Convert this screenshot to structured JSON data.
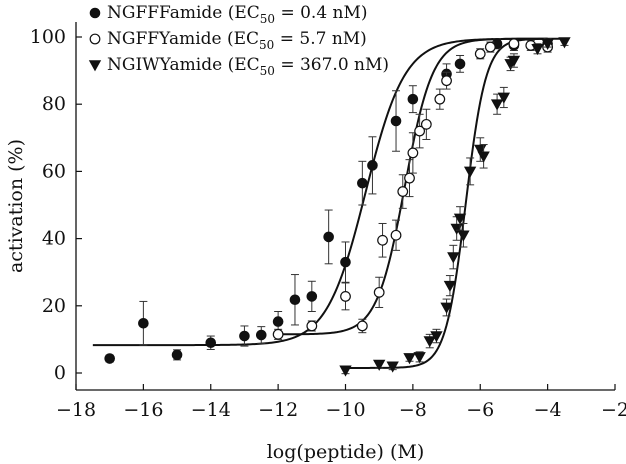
{
  "chart_data": {
    "type": "scatter",
    "title": "",
    "xlabel": "log(peptide) (M)",
    "ylabel": "activation (%)",
    "xlim": [
      -18,
      -2
    ],
    "ylim": [
      0,
      100
    ],
    "xticks": [
      -18,
      -16,
      -14,
      -12,
      -10,
      -8,
      -6,
      -4,
      -2
    ],
    "yticks": [
      0,
      20,
      40,
      60,
      80,
      100
    ],
    "xtick_labels": [
      "−18",
      "−16",
      "−14",
      "−12",
      "−10",
      "−8",
      "−6",
      "−4",
      "−2"
    ],
    "ytick_labels": [
      "0",
      "20",
      "40",
      "60",
      "80",
      "100"
    ],
    "legend_position": "top-left",
    "series": [
      {
        "name": "NGFFFamide",
        "legend": {
          "prefix": "NGFFFamide (EC",
          "sub": "50",
          "suffix": " = 0.4 nM)"
        },
        "marker": "filled-circle",
        "color": "#111111",
        "ec50_log": -9.4,
        "fit_curve": {
          "bottom": 8.3,
          "top": 99.5,
          "hill": 0.75,
          "x_range": [
            -17.5,
            -4
          ]
        },
        "points": [
          {
            "x": -17,
            "y": 4.3,
            "err": 1.0
          },
          {
            "x": -16,
            "y": 14.8,
            "err": 6.5
          },
          {
            "x": -15,
            "y": 5.4,
            "err": 1.5
          },
          {
            "x": -14,
            "y": 9.0,
            "err": 2.0
          },
          {
            "x": -13,
            "y": 11.0,
            "err": 3.0
          },
          {
            "x": -12.5,
            "y": 11.3,
            "err": 2.5
          },
          {
            "x": -12,
            "y": 15.3,
            "err": 3.0
          },
          {
            "x": -11.5,
            "y": 21.8,
            "err": 7.5
          },
          {
            "x": -11,
            "y": 22.8,
            "err": 4.5
          },
          {
            "x": -10.5,
            "y": 40.5,
            "err": 8.0
          },
          {
            "x": -10,
            "y": 33.0,
            "err": 6.0
          },
          {
            "x": -9.5,
            "y": 56.5,
            "err": 6.5
          },
          {
            "x": -9.2,
            "y": 61.8,
            "err": 8.5
          },
          {
            "x": -8.5,
            "y": 75.0,
            "err": 9.0
          },
          {
            "x": -8,
            "y": 81.5,
            "err": 4.0
          },
          {
            "x": -7,
            "y": 89.0,
            "err": 3.0
          },
          {
            "x": -6.6,
            "y": 92.0,
            "err": 2.5
          },
          {
            "x": -5.5,
            "y": 98.0,
            "err": 1.5
          },
          {
            "x": -5,
            "y": 97.5,
            "err": 1.5
          },
          {
            "x": -4,
            "y": 98.0,
            "err": 1.5
          }
        ]
      },
      {
        "name": "NGFFYamide",
        "legend": {
          "prefix": "NGFFYamide (EC",
          "sub": "50",
          "suffix": " = 5.7 nM)"
        },
        "marker": "open-circle",
        "color": "#111111",
        "ec50_log": -8.24,
        "fit_curve": {
          "bottom": 11.5,
          "top": 99.5,
          "hill": 1.05,
          "x_range": [
            -12,
            -4
          ]
        },
        "points": [
          {
            "x": -12,
            "y": 11.5,
            "err": 1.5
          },
          {
            "x": -11,
            "y": 14.0,
            "err": 1.5
          },
          {
            "x": -10,
            "y": 22.8,
            "err": 4.0
          },
          {
            "x": -9.5,
            "y": 14.0,
            "err": 2.0
          },
          {
            "x": -9,
            "y": 24.0,
            "err": 4.5
          },
          {
            "x": -8.9,
            "y": 39.5,
            "err": 5.0
          },
          {
            "x": -8.5,
            "y": 41.0,
            "err": 4.5
          },
          {
            "x": -8.3,
            "y": 54.0,
            "err": 5.0
          },
          {
            "x": -8.1,
            "y": 58.0,
            "err": 5.5
          },
          {
            "x": -8,
            "y": 65.5,
            "err": 6.0
          },
          {
            "x": -7.8,
            "y": 72.0,
            "err": 5.0
          },
          {
            "x": -7.6,
            "y": 74.0,
            "err": 4.5
          },
          {
            "x": -7.2,
            "y": 81.5,
            "err": 3.0
          },
          {
            "x": -7,
            "y": 87.0,
            "err": 2.5
          },
          {
            "x": -6,
            "y": 95.0,
            "err": 1.5
          },
          {
            "x": -5.7,
            "y": 97.0,
            "err": 1.5
          },
          {
            "x": -5,
            "y": 98.0,
            "err": 1.0
          },
          {
            "x": -4.5,
            "y": 97.5,
            "err": 1.5
          },
          {
            "x": -4,
            "y": 97.0,
            "err": 1.5
          }
        ]
      },
      {
        "name": "NGIWYamide",
        "legend": {
          "prefix": "NGIWYamide (EC",
          "sub": "50",
          "suffix": " = 367.0 nM)"
        },
        "marker": "filled-triangle-down",
        "color": "#111111",
        "ec50_log": -6.43,
        "fit_curve": {
          "bottom": 1.5,
          "top": 99.5,
          "hill": 1.45,
          "x_range": [
            -10,
            -3.6
          ]
        },
        "points": [
          {
            "x": -10,
            "y": 0.8,
            "err": 1.0
          },
          {
            "x": -9,
            "y": 2.5,
            "err": 1.0
          },
          {
            "x": -8.6,
            "y": 2.0,
            "err": 1.0
          },
          {
            "x": -8.1,
            "y": 4.5,
            "err": 1.0
          },
          {
            "x": -7.8,
            "y": 4.8,
            "err": 1.5
          },
          {
            "x": -7.5,
            "y": 9.5,
            "err": 2.0
          },
          {
            "x": -7.3,
            "y": 11.0,
            "err": 2.0
          },
          {
            "x": -7.0,
            "y": 19.5,
            "err": 2.5
          },
          {
            "x": -6.9,
            "y": 26.0,
            "err": 3.0
          },
          {
            "x": -6.8,
            "y": 34.5,
            "err": 3.5
          },
          {
            "x": -6.7,
            "y": 43.0,
            "err": 3.5
          },
          {
            "x": -6.6,
            "y": 46.0,
            "err": 3.5
          },
          {
            "x": -6.5,
            "y": 41.0,
            "err": 3.5
          },
          {
            "x": -6.3,
            "y": 60.0,
            "err": 4.0
          },
          {
            "x": -6,
            "y": 66.5,
            "err": 3.5
          },
          {
            "x": -5.9,
            "y": 64.5,
            "err": 3.5
          },
          {
            "x": -5.5,
            "y": 80.0,
            "err": 3.0
          },
          {
            "x": -5.3,
            "y": 82.0,
            "err": 3.0
          },
          {
            "x": -5.1,
            "y": 92.0,
            "err": 2.0
          },
          {
            "x": -5,
            "y": 93.0,
            "err": 2.0
          },
          {
            "x": -4.3,
            "y": 96.5,
            "err": 1.5
          },
          {
            "x": -4,
            "y": 98.0,
            "err": 1.0
          },
          {
            "x": -3.5,
            "y": 98.5,
            "err": 1.0
          }
        ]
      }
    ]
  }
}
